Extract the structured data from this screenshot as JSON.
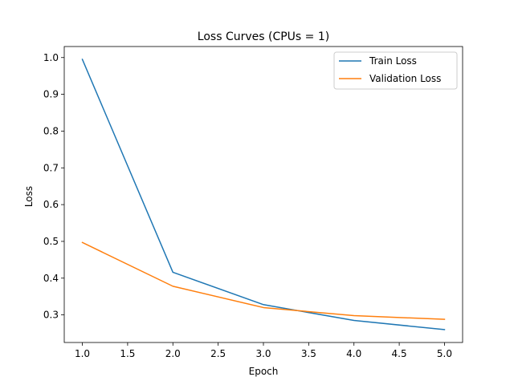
{
  "chart_data": {
    "type": "line",
    "title": "Loss Curves (CPUs = 1)",
    "xlabel": "Epoch",
    "ylabel": "Loss",
    "x": [
      1,
      2,
      3,
      4,
      5
    ],
    "xlim": [
      0.8,
      5.2
    ],
    "ylim": [
      0.225,
      1.03
    ],
    "xticks": [
      1.0,
      1.5,
      2.0,
      2.5,
      3.0,
      3.5,
      4.0,
      4.5,
      5.0
    ],
    "yticks": [
      0.3,
      0.4,
      0.5,
      0.6,
      0.7,
      0.8,
      0.9,
      1.0
    ],
    "grid": false,
    "legend_position": "top-right",
    "series": [
      {
        "name": "Train Loss",
        "color": "#1f77b4",
        "values": [
          0.995,
          0.416,
          0.328,
          0.285,
          0.26
        ]
      },
      {
        "name": "Validation Loss",
        "color": "#ff7f0e",
        "values": [
          0.497,
          0.378,
          0.32,
          0.298,
          0.288
        ]
      }
    ]
  }
}
